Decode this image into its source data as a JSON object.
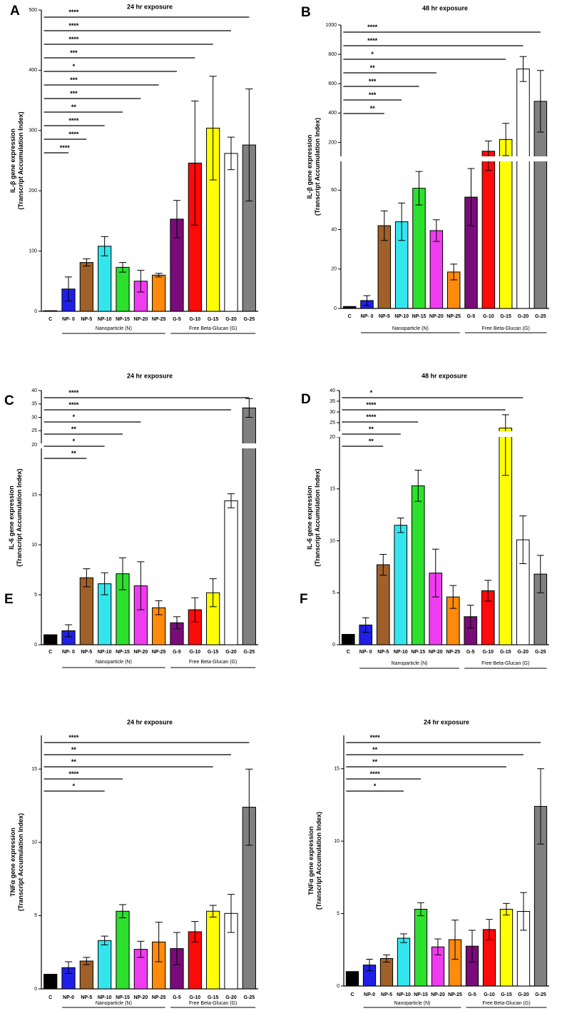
{
  "figure": {
    "categories": [
      "C",
      "NP- 0",
      "NP-5",
      "NP-10",
      "NP-15",
      "NP-20",
      "NP-25",
      "G-5",
      "G-10",
      "G-15",
      "G-20",
      "G-25"
    ],
    "bar_colors": [
      "#000000",
      "#1f1fe8",
      "#a0602a",
      "#33e6ee",
      "#2ee02e",
      "#f03cf0",
      "#ff8a0c",
      "#7a0b7a",
      "#ff0a0a",
      "#ffff00",
      "#ffffff",
      "#808080"
    ],
    "group_labels": [
      "Nanoparticle (N)",
      "Free Beta-Glucan (G)"
    ]
  },
  "chart_data": [
    {
      "panel": "A",
      "type": "bar",
      "title": "24 hr exposure",
      "ylabel": [
        "IL-β gene expression",
        "(Transcript Accumulation Index)"
      ],
      "categories": [
        "C",
        "NP- 0",
        "NP-5",
        "NP-10",
        "NP-15",
        "NP-20",
        "NP-25",
        "G-5",
        "G-10",
        "G-15",
        "G-20",
        "G-25"
      ],
      "values": [
        1,
        37,
        81,
        108,
        73,
        50,
        60,
        153,
        246,
        304,
        262,
        276
      ],
      "errors": [
        0,
        20,
        6,
        16,
        8,
        18,
        3,
        31,
        103,
        86,
        27,
        93
      ],
      "ylim": [
        0,
        500
      ],
      "yticks": [
        0,
        100,
        200,
        300,
        400,
        500
      ],
      "sig": [
        {
          "to": 1,
          "label": "****"
        },
        {
          "to": 2,
          "label": "****"
        },
        {
          "to": 3,
          "label": "****"
        },
        {
          "to": 4,
          "label": "**"
        },
        {
          "to": 5,
          "label": "***"
        },
        {
          "to": 6,
          "label": "***"
        },
        {
          "to": 7,
          "label": "*"
        },
        {
          "to": 8,
          "label": "***"
        },
        {
          "to": 9,
          "label": "****"
        },
        {
          "to": 10,
          "label": "****"
        },
        {
          "to": 11,
          "label": "****"
        }
      ]
    },
    {
      "panel": "B",
      "type": "bar",
      "title": "48 hr exposure",
      "ylabel": [
        "IL-β gene expression",
        "(Transcript Accumulation Index)"
      ],
      "categories": [
        "C",
        "NP- 0",
        "NP-5",
        "NP-10",
        "NP-15",
        "NP-20",
        "NP-25",
        "G-5",
        "G-10",
        "G-15",
        "G-20",
        "G-25"
      ],
      "values": [
        1,
        4,
        42,
        44,
        61,
        39.5,
        18.5,
        56.5,
        140,
        220,
        700,
        480
      ],
      "errors": [
        0,
        2.5,
        7.5,
        9.5,
        8.5,
        5.5,
        4,
        14.5,
        70,
        110,
        85,
        210
      ],
      "axis_break": {
        "lower": [
          0,
          75
        ],
        "upper": [
          100,
          1000
        ]
      },
      "yticks": [
        0,
        20,
        40,
        60,
        200,
        400,
        600,
        800,
        1000
      ],
      "sig": [
        {
          "to": 2,
          "label": "**"
        },
        {
          "to": 3,
          "label": "***"
        },
        {
          "to": 4,
          "label": "***"
        },
        {
          "to": 5,
          "label": "**"
        },
        {
          "to": 9,
          "label": "*"
        },
        {
          "to": 10,
          "label": "****"
        },
        {
          "to": 11,
          "label": "****"
        }
      ]
    },
    {
      "panel": "C",
      "type": "bar",
      "title": "24 hr exposure",
      "ylabel": [
        "IL-6 gene expression",
        "(Transcript Accumulation Index)"
      ],
      "categories": [
        "C",
        "NP- 0",
        "NP-5",
        "NP-10",
        "NP-15",
        "NP-20",
        "NP-25",
        "G-5",
        "G-10",
        "G-15",
        "G-20",
        "G-25"
      ],
      "values": [
        1,
        1.4,
        6.7,
        6.1,
        7.1,
        5.9,
        3.7,
        2.2,
        3.5,
        5.2,
        14.4,
        33.5
      ],
      "errors": [
        0,
        0.6,
        0.9,
        1.1,
        1.6,
        2.4,
        0.7,
        0.6,
        1.2,
        1.4,
        0.7,
        3.5
      ],
      "axis_break": {
        "lower": [
          0,
          20
        ],
        "upper": [
          20,
          40
        ]
      },
      "yticks": [
        0,
        5,
        10,
        15,
        20,
        25,
        30,
        35,
        40
      ],
      "sig": [
        {
          "to": 2,
          "label": "**"
        },
        {
          "to": 3,
          "label": "*"
        },
        {
          "to": 4,
          "label": "**"
        },
        {
          "to": 5,
          "label": "*"
        },
        {
          "to": 10,
          "label": "****"
        },
        {
          "to": 11,
          "label": "****"
        }
      ]
    },
    {
      "panel": "D",
      "type": "bar",
      "title": "48 hr exposure",
      "ylabel": [
        "IL-6 gene expression",
        "(Transcript Accumulation Index)"
      ],
      "categories": [
        "C",
        "NP- 0",
        "NP-5",
        "NP-10",
        "NP-15",
        "NP-20",
        "NP-25",
        "G-5",
        "G-10",
        "G-15",
        "G-20",
        "G-25"
      ],
      "values": [
        1,
        1.9,
        7.7,
        11.5,
        15.3,
        6.9,
        4.6,
        2.7,
        5.2,
        22.5,
        10.1,
        6.8
      ],
      "errors": [
        0,
        0.7,
        1.0,
        0.7,
        1.5,
        2.3,
        1.1,
        1.1,
        1.0,
        6.2,
        2.3,
        1.8
      ],
      "axis_break": {
        "lower": [
          0,
          20
        ],
        "upper": [
          20,
          40
        ]
      },
      "yticks": [
        0,
        5,
        10,
        15,
        20,
        25,
        30,
        35,
        40
      ],
      "sig": [
        {
          "to": 2,
          "label": "**"
        },
        {
          "to": 3,
          "label": "**"
        },
        {
          "to": 4,
          "label": "****"
        },
        {
          "to": 9,
          "label": "****"
        },
        {
          "to": 10,
          "label": "*"
        }
      ]
    },
    {
      "panel": "E",
      "type": "bar",
      "title": "24 hr exposure",
      "ylabel": [
        "TNFα gene expression",
        "(Transcript Accumulation Index)"
      ],
      "categories": [
        "C",
        "NP-0",
        "NP-5",
        "NP-10",
        "NP-15",
        "NP-20",
        "NP-25",
        "G-5",
        "G-10",
        "G-15",
        "G-20",
        "G-25"
      ],
      "values": [
        1,
        1.45,
        1.9,
        3.3,
        5.3,
        2.7,
        3.2,
        2.75,
        3.9,
        5.3,
        5.15,
        12.4
      ],
      "errors": [
        0,
        0.4,
        0.25,
        0.3,
        0.45,
        0.55,
        1.35,
        1.1,
        0.7,
        0.4,
        1.3,
        2.6
      ],
      "ylim": [
        0,
        17.3
      ],
      "yticks": [
        0,
        5,
        10,
        15
      ],
      "sig": [
        {
          "to": 3,
          "label": "*"
        },
        {
          "to": 4,
          "label": "****"
        },
        {
          "to": 9,
          "label": "**"
        },
        {
          "to": 10,
          "label": "**"
        },
        {
          "to": 11,
          "label": "****"
        }
      ]
    },
    {
      "panel": "F",
      "type": "bar",
      "title": "24 hr exposure",
      "ylabel": [
        "TNFα gene expression",
        "(Transcript Accumulation Index)"
      ],
      "categories": [
        "C",
        "NP-0",
        "NP-5",
        "NP-10",
        "NP-15",
        "NP-20",
        "NP-25",
        "G-5",
        "G-10",
        "G-15",
        "G-20",
        "G-25"
      ],
      "values": [
        1,
        1.45,
        1.9,
        3.3,
        5.3,
        2.7,
        3.2,
        2.75,
        3.9,
        5.3,
        5.15,
        12.4
      ],
      "errors": [
        0,
        0.4,
        0.25,
        0.3,
        0.45,
        0.55,
        1.35,
        1.1,
        0.7,
        0.4,
        1.3,
        2.6
      ],
      "ylim": [
        0,
        17.3
      ],
      "yticks": [
        0,
        5,
        10,
        15
      ],
      "sig": [
        {
          "to": 3,
          "label": "*"
        },
        {
          "to": 4,
          "label": "****"
        },
        {
          "to": 9,
          "label": "**"
        },
        {
          "to": 10,
          "label": "**"
        },
        {
          "to": 11,
          "label": "****"
        }
      ]
    }
  ]
}
